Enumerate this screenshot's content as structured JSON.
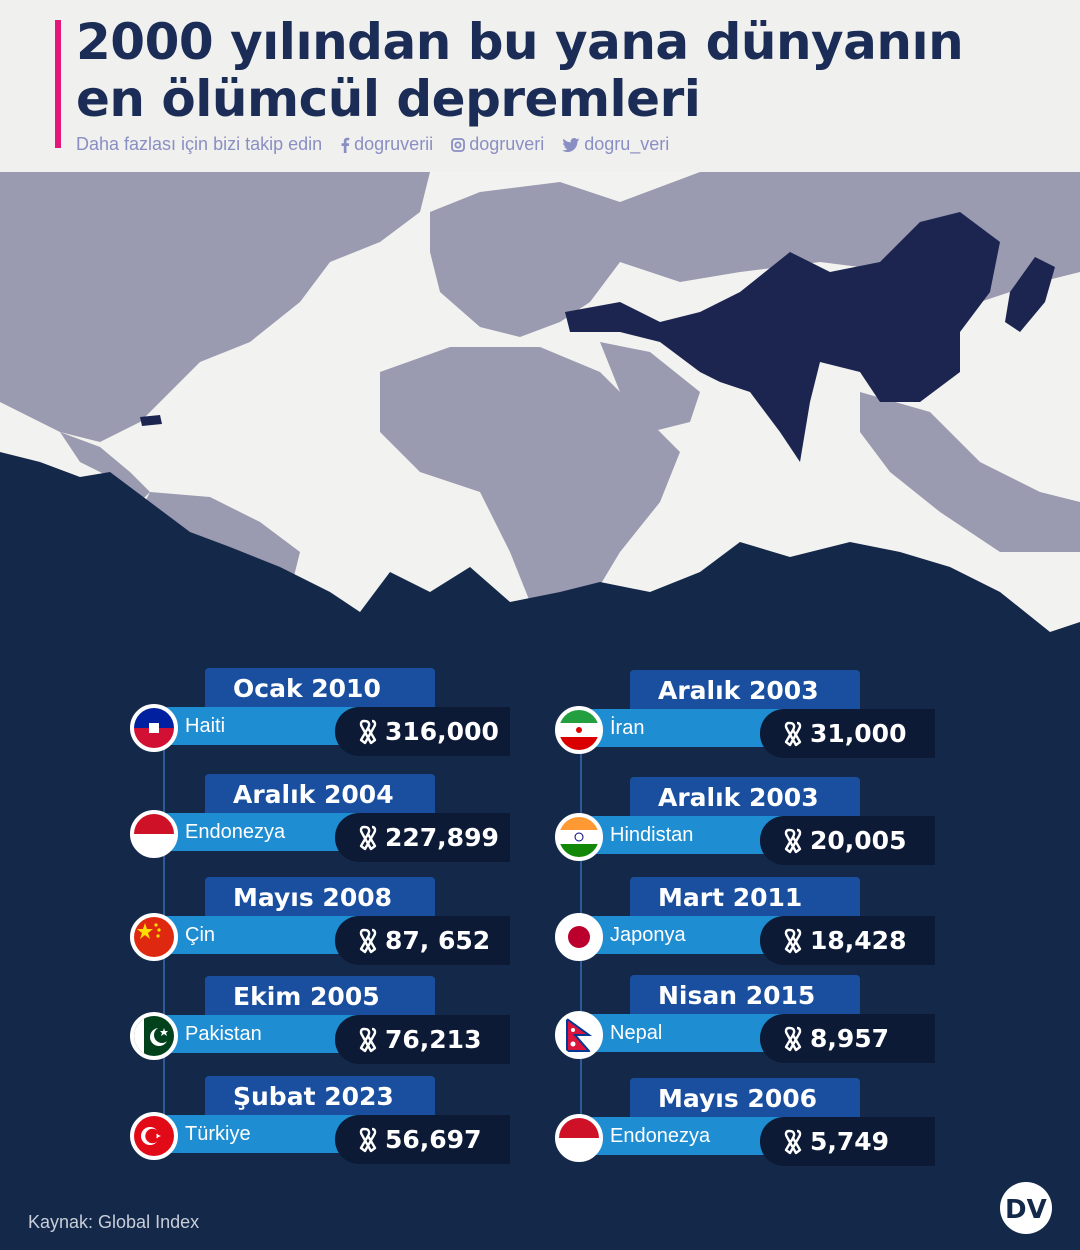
{
  "header": {
    "title_line1": "2000 yılından bu yana dünyanın",
    "title_line2": "en ölümcül depremleri",
    "follow_text": "Daha fazlası için bizi takip edin",
    "facebook": "dogruverii",
    "instagram": "dogruveri",
    "twitter": "dogru_veri"
  },
  "colors": {
    "accent": "#e4167a",
    "background": "#14294a",
    "date_box": "#1a4fa0",
    "country_bar": "#1f8dd2",
    "count_box": "#0d1a35",
    "highlight_country": "#1b2550"
  },
  "earthquakes": [
    {
      "date": "Ocak 2010",
      "country": "Haiti",
      "deaths": "316,000",
      "flag": "haiti-flag"
    },
    {
      "date": "Aralık 2004",
      "country": "Endonezya",
      "deaths": "227,899",
      "flag": "indonesia-flag"
    },
    {
      "date": "Mayıs 2008",
      "country": "Çin",
      "deaths": "87, 652",
      "flag": "china-flag"
    },
    {
      "date": "Ekim 2005",
      "country": "Pakistan",
      "deaths": "76,213",
      "flag": "pakistan-flag"
    },
    {
      "date": "Şubat 2023",
      "country": "Türkiye",
      "deaths": "56,697",
      "flag": "turkey-flag"
    },
    {
      "date": "Aralık 2003",
      "country": "İran",
      "deaths": "31,000",
      "flag": "iran-flag"
    },
    {
      "date": "Aralık 2003",
      "country": "Hindistan",
      "deaths": "20,005",
      "flag": "india-flag"
    },
    {
      "date": "Mart 2011",
      "country": "Japonya",
      "deaths": "18,428",
      "flag": "japan-flag"
    },
    {
      "date": "Nisan 2015",
      "country": "Nepal",
      "deaths": "8,957",
      "flag": "nepal-flag"
    },
    {
      "date": "Mayıs 2006",
      "country": "Endonezya",
      "deaths": "5,749",
      "flag": "indonesia-flag"
    }
  ],
  "footer": {
    "source": "Kaynak: Global Index",
    "logo_text": "DV"
  }
}
